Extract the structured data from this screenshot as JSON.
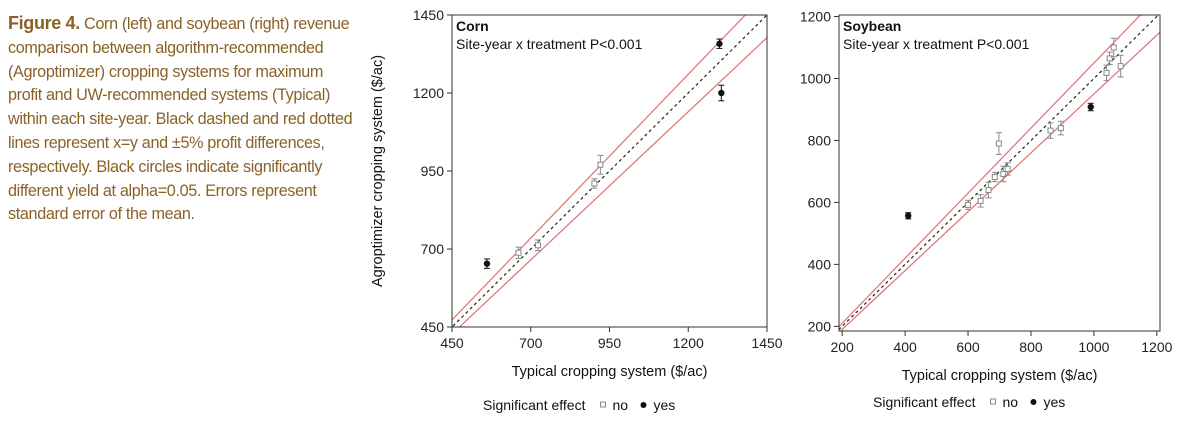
{
  "caption": {
    "label": "Figure 4.",
    "text": "Corn (left) and soybean (right) revenue comparison between algorithm-recommended (Agroptimizer) cropping systems for maximum profit and UW-recommended systems (Typical) within each site-year. Black dashed and red dotted lines represent x=y and ±5% profit differences, respectively. Black circles indicate significantly different yield at alpha=0.05. Errors represent standard error of the mean."
  },
  "colors": {
    "caption": "#8a6228",
    "band": "#e07a7a",
    "identity": "#222222",
    "sig_point": "#111111",
    "nonsig_point": "#8a8a8a"
  },
  "legend": {
    "title": "Significant effect",
    "no": "no",
    "yes": "yes"
  },
  "chart_data": [
    {
      "type": "scatter",
      "title": "Corn",
      "subtitle": "Site-year x treatment P<0.001",
      "xlabel": "Typical cropping system ($/ac)",
      "ylabel": "Agroptimizer cropping system ($/ac)",
      "xlim": [
        450,
        1450
      ],
      "ylim": [
        450,
        1450
      ],
      "xticks": [
        450,
        700,
        950,
        1200,
        1450
      ],
      "yticks": [
        450,
        700,
        950,
        1200,
        1450
      ],
      "xtick_labels": [
        "450",
        "700",
        "950",
        "1200",
        "1450"
      ],
      "ytick_labels": [
        "450",
        "700",
        "950",
        "1200",
        "1450"
      ],
      "lines": {
        "identity": "y=x",
        "band": "±5%"
      },
      "points": [
        {
          "x": 561,
          "y": 653,
          "err": 15,
          "sig": true
        },
        {
          "x": 661,
          "y": 688,
          "err": 18,
          "sig": false
        },
        {
          "x": 723,
          "y": 712,
          "err": 17,
          "sig": false
        },
        {
          "x": 902,
          "y": 910,
          "err": 15,
          "sig": false
        },
        {
          "x": 921,
          "y": 970,
          "err": 30,
          "sig": false
        },
        {
          "x": 1299,
          "y": 1358,
          "err": 15,
          "sig": true
        },
        {
          "x": 1305,
          "y": 1200,
          "err": 25,
          "sig": true
        }
      ]
    },
    {
      "type": "scatter",
      "title": "Soybean",
      "subtitle": "Site-year x treatment P<0.001",
      "xlabel": "Typical cropping system ($/ac)",
      "ylabel": "",
      "xlim": [
        190,
        1210
      ],
      "ylim": [
        185,
        1205
      ],
      "xticks": [
        200,
        400,
        600,
        800,
        1000,
        1200
      ],
      "yticks": [
        200,
        400,
        600,
        800,
        1000,
        1200
      ],
      "xtick_labels": [
        "200",
        "400",
        "600",
        "800",
        "1000",
        "1200"
      ],
      "ytick_labels": [
        "200",
        "400",
        "600",
        "800",
        "1000",
        "1200"
      ],
      "lines": {
        "identity": "y=x",
        "band": "±5%"
      },
      "points": [
        {
          "x": 410,
          "y": 557,
          "err": 10,
          "sig": true
        },
        {
          "x": 600,
          "y": 592,
          "err": 15,
          "sig": false
        },
        {
          "x": 640,
          "y": 605,
          "err": 20,
          "sig": false
        },
        {
          "x": 665,
          "y": 640,
          "err": 25,
          "sig": false
        },
        {
          "x": 685,
          "y": 682,
          "err": 15,
          "sig": false
        },
        {
          "x": 698,
          "y": 790,
          "err": 35,
          "sig": false
        },
        {
          "x": 712,
          "y": 692,
          "err": 25,
          "sig": false
        },
        {
          "x": 726,
          "y": 708,
          "err": 20,
          "sig": false
        },
        {
          "x": 862,
          "y": 832,
          "err": 25,
          "sig": false
        },
        {
          "x": 895,
          "y": 840,
          "err": 22,
          "sig": false
        },
        {
          "x": 990,
          "y": 908,
          "err": 12,
          "sig": true
        },
        {
          "x": 1040,
          "y": 1018,
          "err": 25,
          "sig": false
        },
        {
          "x": 1050,
          "y": 1065,
          "err": 20,
          "sig": false
        },
        {
          "x": 1063,
          "y": 1100,
          "err": 30,
          "sig": false
        },
        {
          "x": 1085,
          "y": 1040,
          "err": 35,
          "sig": false
        }
      ]
    }
  ]
}
